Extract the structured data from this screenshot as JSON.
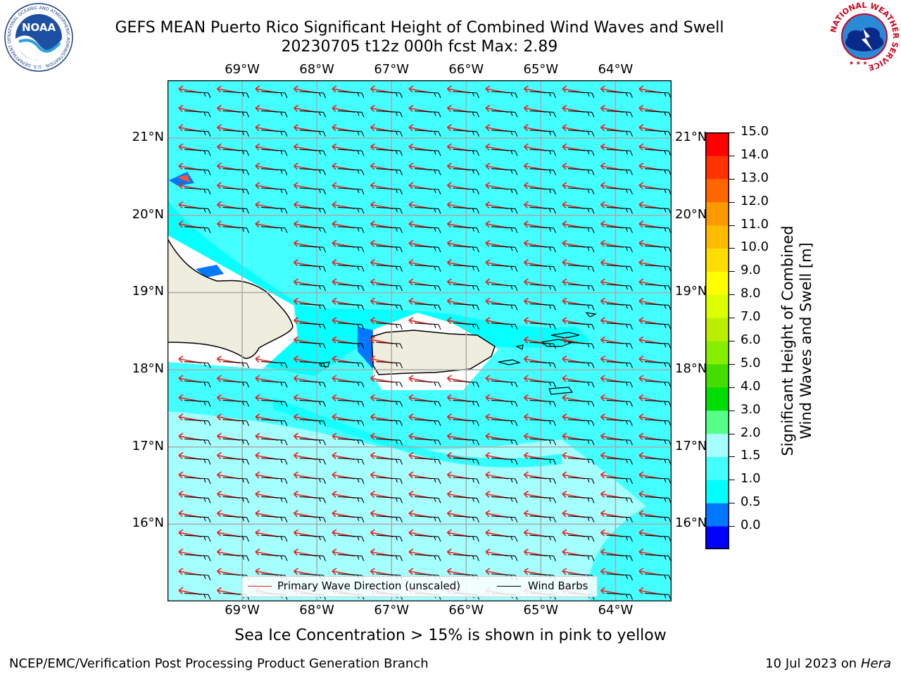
{
  "title": {
    "line1": "GEFS MEAN Puerto Rico Significant Height of Combined Wind Waves and Swell",
    "line2": "20230705 t12z 000h fcst   Max: 2.89"
  },
  "map": {
    "lon_ticks": [
      "69°W",
      "68°W",
      "67°W",
      "66°W",
      "65°W",
      "64°W"
    ],
    "lat_ticks": [
      "21°N",
      "20°N",
      "19°N",
      "18°N",
      "17°N",
      "16°N"
    ],
    "lon_range": [
      -70.0,
      -63.25
    ],
    "lat_range": [
      15.0,
      21.75
    ],
    "grid": true,
    "colors": {
      "ocean_base": "#44ffff",
      "ocean_light": "#a6ffff",
      "ocean_mid": "#00ffff",
      "land": "#efedde",
      "coast": "#000000",
      "wave_arrow": "#e8231f",
      "barb": "#000000",
      "grid": "#a9a9a9"
    }
  },
  "legend": {
    "primary_wave": "Primary Wave Direction (unscaled)",
    "wind_barbs": "Wind Barbs"
  },
  "colorbar": {
    "title_line1": "Significant Height of Combined",
    "title_line2": "Wind Waves and Swell [m]",
    "ticks": [
      "15.0",
      "14.0",
      "13.0",
      "12.0",
      "11.0",
      "10.0",
      "9.0",
      "8.0",
      "7.0",
      "6.0",
      "5.0",
      "4.0",
      "3.0",
      "2.0",
      "1.5",
      "1.0",
      "0.5",
      "0.0"
    ],
    "colors": [
      "#0000ff",
      "#0077ff",
      "#00ffff",
      "#44ffff",
      "#a6ffff",
      "#55ff88",
      "#00dd00",
      "#44dd00",
      "#88ee00",
      "#bbee00",
      "#ddff00",
      "#ffff00",
      "#ffdd00",
      "#ffbb00",
      "#ff9900",
      "#ff6600",
      "#ff3300",
      "#ff0000"
    ]
  },
  "sub_note": "Sea Ice Concentration > 15% is shown in pink to yellow",
  "footer": {
    "left": "NCEP/EMC/Verification Post Processing Product Generation Branch",
    "date": "10 Jul 2023 on ",
    "host": "Hera"
  },
  "logos": {
    "noaa_text": "NOAA",
    "noaa_ring": "NATIONAL OCEANIC AND ATMOSPHERIC ADMINISTRATION · U.S. DEPARTMENT OF COMMERCE",
    "nws_ring": "NATIONAL WEATHER SERVICE"
  }
}
